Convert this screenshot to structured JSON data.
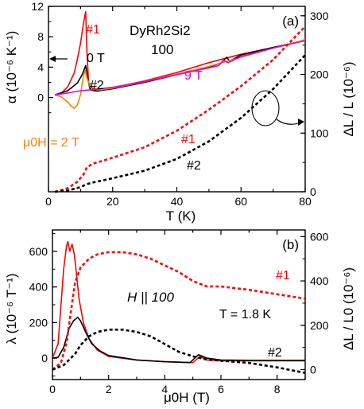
{
  "chart_data": [
    {
      "panel": "(a)",
      "type": "line",
      "title": "DyRh2Si2",
      "subtitle": "100",
      "xlabel": "T (K)",
      "ylabel": "α (10⁻⁶ K⁻¹)",
      "ylabel_right": "ΔL / L (10⁻⁶)",
      "xlim": [
        0,
        80
      ],
      "ylim": [
        -12.4,
        12
      ],
      "ylim_right": [
        0,
        316
      ],
      "xticks": [
        "0",
        "20",
        "40",
        "60",
        "80"
      ],
      "yticks": [
        "0",
        "4",
        "8",
        "12"
      ],
      "yticks_right": [
        "0",
        "100",
        "200",
        "300"
      ],
      "annotations": [
        "#1",
        "0 T",
        "#2",
        "9 T",
        "μ0H = 2 T",
        "#1",
        "#2"
      ],
      "series": [
        {
          "name": "#1",
          "axis": "left",
          "style": "solid",
          "color": "#ff0000",
          "x": [
            2,
            4,
            6,
            8,
            9,
            10,
            11,
            11.6,
            12,
            12.5,
            14,
            20,
            30,
            40,
            50,
            60,
            70,
            80
          ],
          "y": [
            0.35,
            0.6,
            1.4,
            3.2,
            5.0,
            7.2,
            10.0,
            11.3,
            6.0,
            2.0,
            1.0,
            1.3,
            2.2,
            3.3,
            4.6,
            5.7,
            6.6,
            7.5
          ]
        },
        {
          "name": "#2",
          "axis": "left",
          "style": "solid",
          "color": "#000000",
          "x": [
            2,
            6,
            9,
            10.5,
            11.6,
            12.3,
            13,
            15,
            20,
            30,
            40,
            50,
            54,
            55.5,
            56.5,
            60,
            70,
            80
          ],
          "y": [
            0.35,
            0.9,
            1.9,
            3.0,
            4.2,
            2.3,
            1.0,
            0.85,
            1.15,
            2.0,
            3.0,
            4.0,
            4.6,
            5.3,
            4.8,
            5.6,
            6.6,
            7.5
          ]
        },
        {
          "name": "2 T",
          "axis": "left",
          "style": "solid",
          "color": "#ff8000",
          "x": [
            2,
            4,
            6,
            7,
            8,
            9,
            10,
            10.8,
            11.5,
            12,
            13,
            16,
            20,
            30,
            40,
            50,
            60,
            70,
            80
          ],
          "y": [
            0.35,
            0.1,
            -0.6,
            -1.1,
            -1.4,
            -1.0,
            0.4,
            2.6,
            3.6,
            2.6,
            1.4,
            1.0,
            1.25,
            2.1,
            3.1,
            4.1,
            5.3,
            6.5,
            7.6
          ]
        },
        {
          "name": "9 T",
          "axis": "left",
          "style": "solid",
          "color": "#e000e0",
          "x": [
            2,
            6,
            10,
            14,
            20,
            30,
            40,
            50,
            53,
            54.5,
            56,
            60,
            70,
            80
          ],
          "y": [
            0.35,
            0.6,
            0.9,
            1.05,
            1.35,
            2.1,
            3.0,
            3.9,
            4.2,
            4.9,
            4.6,
            5.4,
            6.5,
            7.5
          ]
        },
        {
          "name": "#1",
          "axis": "right",
          "style": "dashed",
          "color": "#ff0000",
          "x": [
            2,
            6,
            9,
            11,
            12,
            14,
            20,
            30,
            40,
            50,
            60,
            70,
            80
          ],
          "y": [
            0,
            6,
            17,
            30,
            42,
            48,
            58,
            76,
            104,
            140,
            180,
            225,
            282
          ]
        },
        {
          "name": "#2",
          "axis": "right",
          "style": "dashed",
          "color": "#000000",
          "x": [
            2,
            6,
            10,
            12,
            14,
            20,
            30,
            40,
            50,
            60,
            70,
            80
          ],
          "y": [
            0,
            2,
            8,
            13,
            16,
            23,
            36,
            56,
            86,
            126,
            175,
            233
          ]
        }
      ]
    },
    {
      "panel": "(b)",
      "type": "line",
      "xlabel": "μ0H (T)",
      "ylabel": "λ (10⁻⁶ T⁻¹)",
      "ylabel_right": "ΔL / L0 (10⁻⁶)",
      "xlim": [
        0,
        9
      ],
      "ylim": [
        -120,
        720
      ],
      "ylim_right": [
        -45,
        630
      ],
      "xticks": [
        "0",
        "2",
        "4",
        "6",
        "8"
      ],
      "yticks": [
        "0",
        "200",
        "400",
        "600"
      ],
      "yticks_right": [
        "0",
        "200",
        "400",
        "600"
      ],
      "annotations": [
        "H || 100",
        "T = 1.8 K",
        "#1",
        "#2"
      ],
      "series": [
        {
          "name": "#1",
          "axis": "left",
          "style": "solid",
          "color": "#ff0000",
          "x": [
            0,
            0.2,
            0.3,
            0.4,
            0.5,
            0.55,
            0.62,
            0.7,
            0.78,
            0.85,
            0.95,
            1.1,
            1.3,
            1.6,
            2.0,
            3.0,
            4.0,
            5.0,
            5.25,
            5.5,
            6.0,
            7.0,
            8.0,
            9.0
          ],
          "y": [
            0,
            80,
            290,
            500,
            630,
            655,
            600,
            640,
            580,
            480,
            330,
            200,
            110,
            45,
            10,
            -10,
            -20,
            -25,
            10,
            -10,
            -15,
            -15,
            -15,
            -15
          ]
        },
        {
          "name": "#2",
          "axis": "left",
          "style": "solid",
          "color": "#000000",
          "x": [
            0,
            0.2,
            0.4,
            0.6,
            0.75,
            0.9,
            1.0,
            1.2,
            1.4,
            1.7,
            2.0,
            3.0,
            4.0,
            4.9,
            5.2,
            5.5,
            6.0,
            7.0,
            8.0,
            9.0
          ],
          "y": [
            0,
            5,
            60,
            170,
            210,
            230,
            210,
            140,
            80,
            40,
            15,
            -10,
            -20,
            -25,
            20,
            0,
            -10,
            -12,
            -12,
            -12
          ]
        },
        {
          "name": "#1",
          "axis": "right",
          "style": "dashed",
          "color": "#ff0000",
          "x": [
            0,
            0.3,
            0.5,
            0.6,
            0.8,
            1.0,
            1.3,
            1.6,
            2.0,
            2.5,
            3.0,
            3.5,
            4.0,
            4.5,
            5.0,
            5.5,
            6.0,
            7.0,
            8.0,
            9.0
          ],
          "y": [
            0,
            30,
            120,
            210,
            390,
            460,
            500,
            520,
            530,
            530,
            520,
            500,
            470,
            440,
            400,
            375,
            375,
            360,
            340,
            320
          ]
        },
        {
          "name": "#2",
          "axis": "right",
          "style": "dashed",
          "color": "#000000",
          "x": [
            0,
            0.4,
            0.8,
            1.0,
            1.3,
            1.6,
            2.0,
            2.5,
            3.0,
            3.5,
            4.0,
            4.5,
            5.0,
            5.5,
            6.0,
            7.0,
            8.0,
            9.0
          ],
          "y": [
            0,
            20,
            70,
            110,
            150,
            170,
            180,
            180,
            170,
            150,
            115,
            80,
            60,
            45,
            40,
            30,
            10,
            -15
          ]
        }
      ]
    }
  ]
}
